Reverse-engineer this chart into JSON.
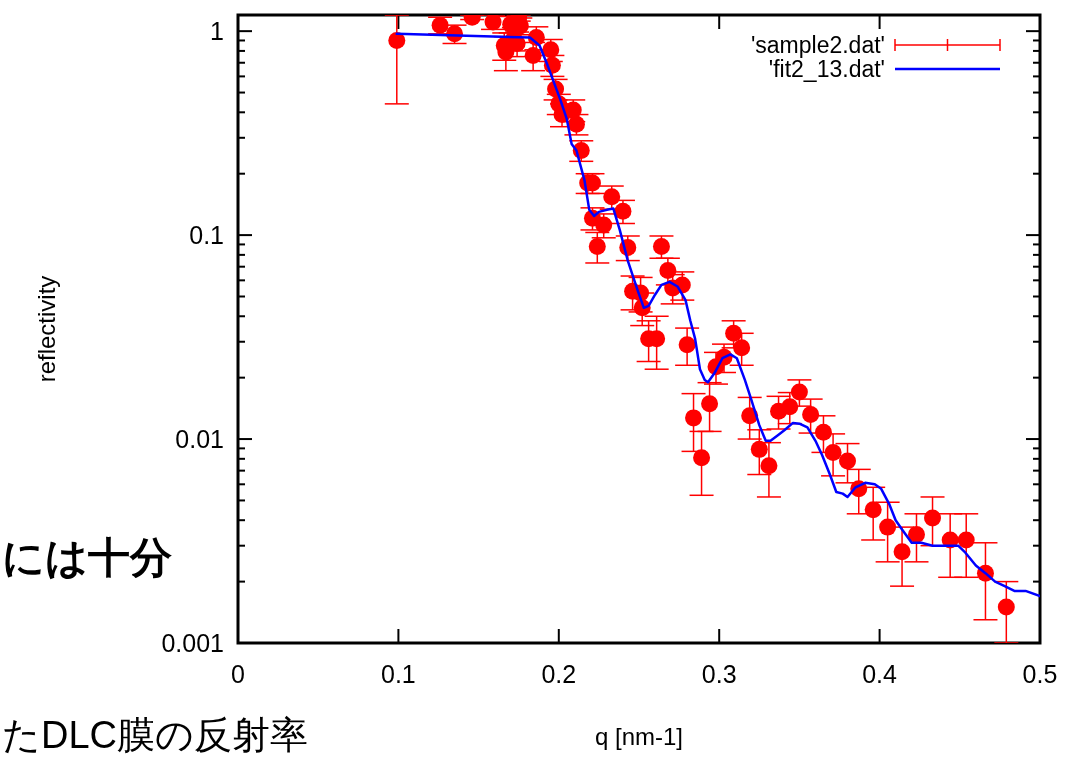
{
  "chart_data": {
    "type": "scatter",
    "xlabel": "q [nm-1]",
    "ylabel": "reflectivity",
    "annotations": [
      "には十分",
      "たDLC膜の反射率"
    ],
    "xlim": [
      0,
      0.5
    ],
    "xticks": [
      0,
      0.1,
      0.2,
      0.3,
      0.4,
      0.5
    ],
    "ylim": [
      0.001,
      1.2
    ],
    "yticks": [
      0.001,
      0.01,
      0.1,
      1
    ],
    "log": "y",
    "grid": false,
    "legend": "top right",
    "series": [
      {
        "name": "'sample2.dat'",
        "type": "scatter",
        "color": "#ff0000",
        "marker": "circle",
        "x": [
          0.099,
          0.126,
          0.135,
          0.146,
          0.159,
          0.166,
          0.167,
          0.17,
          0.172,
          0.174,
          0.175,
          0.176,
          0.184,
          0.186,
          0.195,
          0.196,
          0.198,
          0.2,
          0.202,
          0.209,
          0.211,
          0.214,
          0.218,
          0.221,
          0.221,
          0.224,
          0.228,
          0.233,
          0.24,
          0.243,
          0.246,
          0.251,
          0.252,
          0.256,
          0.261,
          0.264,
          0.268,
          0.271,
          0.277,
          0.28,
          0.284,
          0.289,
          0.294,
          0.298,
          0.303,
          0.309,
          0.314,
          0.319,
          0.325,
          0.331,
          0.337,
          0.344,
          0.35,
          0.357,
          0.365,
          0.371,
          0.38,
          0.387,
          0.396,
          0.405,
          0.414,
          0.423,
          0.433,
          0.444,
          0.454,
          0.466,
          0.479
        ],
        "values": [
          0.9,
          1.07,
          0.97,
          1.17,
          1.11,
          0.85,
          0.79,
          1.08,
          0.92,
          0.87,
          1.16,
          1.06,
          0.76,
          0.93,
          0.81,
          0.68,
          0.52,
          0.44,
          0.39,
          0.41,
          0.35,
          0.26,
          0.18,
          0.18,
          0.121,
          0.088,
          0.112,
          0.154,
          0.131,
          0.087,
          0.053,
          0.052,
          0.044,
          0.031,
          0.031,
          0.088,
          0.067,
          0.055,
          0.057,
          0.029,
          0.0127,
          0.0081,
          0.0149,
          0.0226,
          0.0252,
          0.033,
          0.028,
          0.013,
          0.0089,
          0.0074,
          0.0137,
          0.0144,
          0.017,
          0.0132,
          0.0108,
          0.0086,
          0.0078,
          0.0057,
          0.0045,
          0.0037,
          0.0028,
          0.0034,
          0.0041,
          0.0032,
          0.0032,
          0.0022,
          0.0015
        ],
        "errors": [
          [
            0.44,
            1.2
          ],
          0.1,
          0.1,
          0.03,
          0.09,
          0.13,
          0.15,
          0.1,
          0.12,
          0.12,
          0.04,
          0.1,
          0.12,
          0.12,
          0.1,
          0.08,
          0.06,
          0.05,
          0.05,
          0.05,
          0.04,
          0.03,
          0.02,
          0.02,
          0.015,
          0.015,
          0.015,
          0.02,
          0.017,
          0.012,
          0.01,
          0.01,
          0.008,
          0.007,
          0.009,
          0.011,
          0.01,
          0.009,
          0.009,
          0.006,
          0.004,
          0.0028,
          0.004,
          0.004,
          0.004,
          0.005,
          0.005,
          0.003,
          0.0022,
          0.0022,
          0.0025,
          0.0025,
          0.0025,
          0.0025,
          0.0022,
          0.002,
          0.0017,
          0.0014,
          0.0013,
          0.0012,
          0.0009,
          0.0009,
          0.0011,
          0.0011,
          0.0011,
          0.0009,
          0.0005
        ]
      },
      {
        "name": "'fit2_13.dat'",
        "type": "line",
        "color": "#0000ff",
        "marker": "none",
        "line_style": "solid",
        "x": [
          0.099,
          0.182,
          0.188,
          0.193,
          0.201,
          0.205,
          0.208,
          0.211,
          0.216,
          0.219,
          0.222,
          0.225,
          0.23,
          0.234,
          0.238,
          0.243,
          0.249,
          0.253,
          0.256,
          0.26,
          0.264,
          0.269,
          0.274,
          0.279,
          0.282,
          0.285,
          0.288,
          0.291,
          0.293,
          0.297,
          0.302,
          0.307,
          0.311,
          0.316,
          0.32,
          0.325,
          0.329,
          0.332,
          0.337,
          0.341,
          0.346,
          0.35,
          0.355,
          0.36,
          0.364,
          0.369,
          0.373,
          0.377,
          0.38,
          0.385,
          0.391,
          0.397,
          0.401,
          0.406,
          0.41,
          0.414,
          0.42,
          0.426,
          0.433,
          0.441,
          0.449,
          0.453,
          0.46,
          0.466,
          0.472,
          0.478,
          0.484,
          0.491,
          0.5
        ],
        "values": [
          0.97,
          0.93,
          0.85,
          0.68,
          0.46,
          0.37,
          0.28,
          0.26,
          0.186,
          0.133,
          0.124,
          0.13,
          0.133,
          0.135,
          0.106,
          0.075,
          0.054,
          0.044,
          0.045,
          0.051,
          0.057,
          0.059,
          0.056,
          0.048,
          0.038,
          0.031,
          0.022,
          0.0195,
          0.019,
          0.021,
          0.0249,
          0.026,
          0.0249,
          0.0195,
          0.0156,
          0.0117,
          0.0098,
          0.0098,
          0.0105,
          0.0111,
          0.012,
          0.0119,
          0.0114,
          0.0098,
          0.0084,
          0.0067,
          0.0055,
          0.0054,
          0.0052,
          0.0058,
          0.0061,
          0.006,
          0.0057,
          0.0048,
          0.004,
          0.0036,
          0.0031,
          0.0031,
          0.003,
          0.003,
          0.003,
          0.0028,
          0.0024,
          0.0022,
          0.002,
          0.0019,
          0.0018,
          0.0018,
          0.0017
        ]
      }
    ]
  }
}
